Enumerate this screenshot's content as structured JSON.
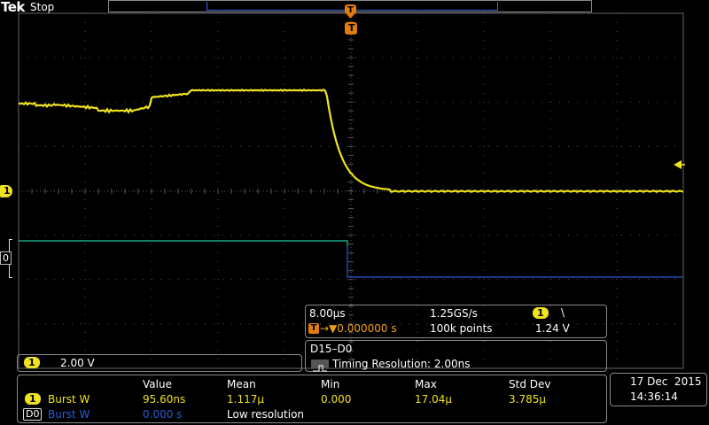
{
  "brand": {
    "logo": "Tek",
    "run_state": "Stop"
  },
  "trigger": {
    "marker": "T",
    "icon": "trigger-position-icon"
  },
  "channels": {
    "ch1_marker": "1",
    "d0_marker": "0",
    "ch1_color": "#f0e21e",
    "d0_color": "#2a5bd7",
    "d0_high_color": "#1fc8a0"
  },
  "timebase": {
    "horizontal_scale": "8.00µs",
    "sample_rate": "1.25GS/s",
    "trigger_channel": "1",
    "trigger_slope_icon": "falling-edge-icon",
    "trigger_slope": "\\",
    "trigger_label_prefix": "T",
    "trigger_delay": "→▼0.000000 s",
    "record_length": "100k points",
    "trigger_level": "1.24 V"
  },
  "ch1_scale": {
    "channel": "1",
    "volts_per_div": "2.00 V"
  },
  "digital": {
    "title": "D15–D0",
    "timing_resolution": "Timing Resolution: 2.00ns",
    "icon": "digital-timing-icon"
  },
  "measurements": {
    "headers": [
      "Value",
      "Mean",
      "Min",
      "Max",
      "Std Dev"
    ],
    "rows": [
      {
        "source": "1",
        "name": "Burst W",
        "value": "95.60ns",
        "mean": "1.117µ",
        "min": "0.000",
        "max": "17.04µ",
        "std": "3.785µ"
      },
      {
        "source": "D0",
        "name": "Burst W",
        "value": "0.000 s",
        "note": "Low resolution"
      }
    ]
  },
  "datetime": {
    "date": "17 Dec  2015",
    "time": "14:36:14"
  }
}
